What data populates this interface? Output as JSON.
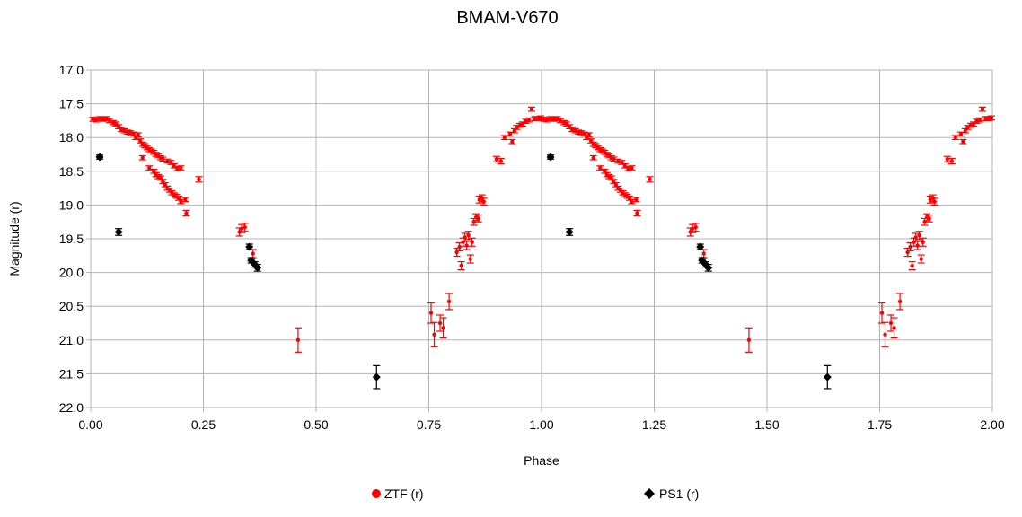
{
  "chart_data": {
    "type": "scatter",
    "title": "BMAM-V670",
    "xlabel": "Phase",
    "ylabel": "Magnitude (r)",
    "xlim": [
      0,
      2
    ],
    "ylim": [
      22.0,
      17.0
    ],
    "y_inverted": true,
    "grid": true,
    "legend_position": "bottom",
    "x_ticks": [
      "0.00",
      "0.25",
      "0.50",
      "0.75",
      "1.00",
      "1.25",
      "1.50",
      "1.75",
      "2.00"
    ],
    "y_ticks": [
      "17.0",
      "17.5",
      "18.0",
      "18.5",
      "19.0",
      "19.5",
      "20.0",
      "20.5",
      "21.0",
      "21.5",
      "22.0"
    ],
    "series": [
      {
        "name": "ZTF (r)",
        "color": "#ff0000",
        "marker": "circle",
        "points": [
          {
            "x": 0.005,
            "y": 17.73,
            "err": 0.03
          },
          {
            "x": 0.012,
            "y": 17.74,
            "err": 0.03
          },
          {
            "x": 0.02,
            "y": 17.72,
            "err": 0.03
          },
          {
            "x": 0.028,
            "y": 17.73,
            "err": 0.03
          },
          {
            "x": 0.035,
            "y": 17.72,
            "err": 0.03
          },
          {
            "x": 0.042,
            "y": 17.75,
            "err": 0.03
          },
          {
            "x": 0.05,
            "y": 17.78,
            "err": 0.03
          },
          {
            "x": 0.056,
            "y": 17.8,
            "err": 0.03
          },
          {
            "x": 0.062,
            "y": 17.84,
            "err": 0.03
          },
          {
            "x": 0.068,
            "y": 17.88,
            "err": 0.03
          },
          {
            "x": 0.075,
            "y": 17.9,
            "err": 0.03
          },
          {
            "x": 0.082,
            "y": 17.92,
            "err": 0.03
          },
          {
            "x": 0.088,
            "y": 17.93,
            "err": 0.03
          },
          {
            "x": 0.095,
            "y": 17.95,
            "err": 0.03
          },
          {
            "x": 0.1,
            "y": 18.0,
            "err": 0.03
          },
          {
            "x": 0.105,
            "y": 17.96,
            "err": 0.03
          },
          {
            "x": 0.11,
            "y": 18.05,
            "err": 0.03
          },
          {
            "x": 0.115,
            "y": 18.1,
            "err": 0.03
          },
          {
            "x": 0.12,
            "y": 18.12,
            "err": 0.03
          },
          {
            "x": 0.125,
            "y": 18.15,
            "err": 0.03
          },
          {
            "x": 0.13,
            "y": 18.18,
            "err": 0.03
          },
          {
            "x": 0.135,
            "y": 18.2,
            "err": 0.03
          },
          {
            "x": 0.14,
            "y": 18.22,
            "err": 0.03
          },
          {
            "x": 0.145,
            "y": 18.25,
            "err": 0.03
          },
          {
            "x": 0.15,
            "y": 18.27,
            "err": 0.03
          },
          {
            "x": 0.155,
            "y": 18.3,
            "err": 0.03
          },
          {
            "x": 0.16,
            "y": 18.32,
            "err": 0.03
          },
          {
            "x": 0.17,
            "y": 18.35,
            "err": 0.03
          },
          {
            "x": 0.178,
            "y": 18.37,
            "err": 0.03
          },
          {
            "x": 0.185,
            "y": 18.42,
            "err": 0.03
          },
          {
            "x": 0.192,
            "y": 18.46,
            "err": 0.03
          },
          {
            "x": 0.2,
            "y": 18.45,
            "err": 0.03
          },
          {
            "x": 0.115,
            "y": 18.3,
            "err": 0.03
          },
          {
            "x": 0.13,
            "y": 18.45,
            "err": 0.03
          },
          {
            "x": 0.14,
            "y": 18.5,
            "err": 0.03
          },
          {
            "x": 0.145,
            "y": 18.55,
            "err": 0.03
          },
          {
            "x": 0.15,
            "y": 18.58,
            "err": 0.03
          },
          {
            "x": 0.155,
            "y": 18.6,
            "err": 0.03
          },
          {
            "x": 0.16,
            "y": 18.65,
            "err": 0.03
          },
          {
            "x": 0.165,
            "y": 18.7,
            "err": 0.03
          },
          {
            "x": 0.17,
            "y": 18.75,
            "err": 0.03
          },
          {
            "x": 0.175,
            "y": 18.78,
            "err": 0.03
          },
          {
            "x": 0.18,
            "y": 18.82,
            "err": 0.03
          },
          {
            "x": 0.185,
            "y": 18.85,
            "err": 0.03
          },
          {
            "x": 0.19,
            "y": 18.87,
            "err": 0.03
          },
          {
            "x": 0.195,
            "y": 18.9,
            "err": 0.03
          },
          {
            "x": 0.2,
            "y": 18.95,
            "err": 0.03
          },
          {
            "x": 0.21,
            "y": 18.92,
            "err": 0.03
          },
          {
            "x": 0.212,
            "y": 19.12,
            "err": 0.04
          },
          {
            "x": 0.24,
            "y": 18.62,
            "err": 0.04
          },
          {
            "x": 0.33,
            "y": 19.4,
            "err": 0.06
          },
          {
            "x": 0.335,
            "y": 19.35,
            "err": 0.06
          },
          {
            "x": 0.342,
            "y": 19.33,
            "err": 0.06
          },
          {
            "x": 0.36,
            "y": 19.72,
            "err": 0.06
          },
          {
            "x": 0.46,
            "y": 21.0,
            "err": 0.18
          },
          {
            "x": 0.755,
            "y": 20.6,
            "err": 0.15
          },
          {
            "x": 0.762,
            "y": 20.92,
            "err": 0.18
          },
          {
            "x": 0.775,
            "y": 20.75,
            "err": 0.12
          },
          {
            "x": 0.782,
            "y": 20.82,
            "err": 0.15
          },
          {
            "x": 0.795,
            "y": 20.43,
            "err": 0.12
          },
          {
            "x": 0.812,
            "y": 19.7,
            "err": 0.06
          },
          {
            "x": 0.818,
            "y": 19.62,
            "err": 0.06
          },
          {
            "x": 0.822,
            "y": 19.9,
            "err": 0.06
          },
          {
            "x": 0.826,
            "y": 19.55,
            "err": 0.06
          },
          {
            "x": 0.83,
            "y": 19.48,
            "err": 0.06
          },
          {
            "x": 0.834,
            "y": 19.6,
            "err": 0.06
          },
          {
            "x": 0.838,
            "y": 19.45,
            "err": 0.06
          },
          {
            "x": 0.842,
            "y": 19.8,
            "err": 0.06
          },
          {
            "x": 0.846,
            "y": 19.55,
            "err": 0.06
          },
          {
            "x": 0.85,
            "y": 19.25,
            "err": 0.05
          },
          {
            "x": 0.855,
            "y": 19.18,
            "err": 0.05
          },
          {
            "x": 0.86,
            "y": 19.2,
            "err": 0.05
          },
          {
            "x": 0.862,
            "y": 18.92,
            "err": 0.05
          },
          {
            "x": 0.868,
            "y": 18.9,
            "err": 0.05
          },
          {
            "x": 0.872,
            "y": 18.95,
            "err": 0.05
          },
          {
            "x": 0.9,
            "y": 18.32,
            "err": 0.04
          },
          {
            "x": 0.91,
            "y": 18.35,
            "err": 0.04
          },
          {
            "x": 0.918,
            "y": 18.0,
            "err": 0.03
          },
          {
            "x": 0.93,
            "y": 17.95,
            "err": 0.03
          },
          {
            "x": 0.935,
            "y": 18.06,
            "err": 0.03
          },
          {
            "x": 0.94,
            "y": 17.9,
            "err": 0.03
          },
          {
            "x": 0.945,
            "y": 17.85,
            "err": 0.03
          },
          {
            "x": 0.952,
            "y": 17.82,
            "err": 0.03
          },
          {
            "x": 0.958,
            "y": 17.8,
            "err": 0.03
          },
          {
            "x": 0.965,
            "y": 17.76,
            "err": 0.03
          },
          {
            "x": 0.972,
            "y": 17.74,
            "err": 0.03
          },
          {
            "x": 0.978,
            "y": 17.58,
            "err": 0.03
          },
          {
            "x": 0.985,
            "y": 17.72,
            "err": 0.03
          },
          {
            "x": 0.992,
            "y": 17.72,
            "err": 0.03
          },
          {
            "x": 0.998,
            "y": 17.71,
            "err": 0.03
          },
          {
            "x": 1.005,
            "y": 17.73,
            "err": 0.03
          },
          {
            "x": 1.012,
            "y": 17.74,
            "err": 0.03
          },
          {
            "x": 1.02,
            "y": 17.72,
            "err": 0.03
          },
          {
            "x": 1.028,
            "y": 17.73,
            "err": 0.03
          },
          {
            "x": 1.035,
            "y": 17.72,
            "err": 0.03
          },
          {
            "x": 1.042,
            "y": 17.75,
            "err": 0.03
          },
          {
            "x": 1.05,
            "y": 17.78,
            "err": 0.03
          },
          {
            "x": 1.056,
            "y": 17.8,
            "err": 0.03
          },
          {
            "x": 1.062,
            "y": 17.84,
            "err": 0.03
          },
          {
            "x": 1.068,
            "y": 17.88,
            "err": 0.03
          },
          {
            "x": 1.075,
            "y": 17.9,
            "err": 0.03
          },
          {
            "x": 1.082,
            "y": 17.92,
            "err": 0.03
          },
          {
            "x": 1.088,
            "y": 17.93,
            "err": 0.03
          },
          {
            "x": 1.095,
            "y": 17.95,
            "err": 0.03
          },
          {
            "x": 1.1,
            "y": 18.0,
            "err": 0.03
          },
          {
            "x": 1.105,
            "y": 17.96,
            "err": 0.03
          },
          {
            "x": 1.11,
            "y": 18.05,
            "err": 0.03
          },
          {
            "x": 1.115,
            "y": 18.1,
            "err": 0.03
          },
          {
            "x": 1.12,
            "y": 18.12,
            "err": 0.03
          },
          {
            "x": 1.125,
            "y": 18.15,
            "err": 0.03
          },
          {
            "x": 1.13,
            "y": 18.18,
            "err": 0.03
          },
          {
            "x": 1.135,
            "y": 18.2,
            "err": 0.03
          },
          {
            "x": 1.14,
            "y": 18.22,
            "err": 0.03
          },
          {
            "x": 1.145,
            "y": 18.25,
            "err": 0.03
          },
          {
            "x": 1.15,
            "y": 18.27,
            "err": 0.03
          },
          {
            "x": 1.155,
            "y": 18.3,
            "err": 0.03
          },
          {
            "x": 1.16,
            "y": 18.32,
            "err": 0.03
          },
          {
            "x": 1.17,
            "y": 18.35,
            "err": 0.03
          },
          {
            "x": 1.178,
            "y": 18.37,
            "err": 0.03
          },
          {
            "x": 1.185,
            "y": 18.42,
            "err": 0.03
          },
          {
            "x": 1.192,
            "y": 18.46,
            "err": 0.03
          },
          {
            "x": 1.2,
            "y": 18.45,
            "err": 0.03
          },
          {
            "x": 1.115,
            "y": 18.3,
            "err": 0.03
          },
          {
            "x": 1.13,
            "y": 18.45,
            "err": 0.03
          },
          {
            "x": 1.14,
            "y": 18.5,
            "err": 0.03
          },
          {
            "x": 1.145,
            "y": 18.55,
            "err": 0.03
          },
          {
            "x": 1.15,
            "y": 18.58,
            "err": 0.03
          },
          {
            "x": 1.155,
            "y": 18.6,
            "err": 0.03
          },
          {
            "x": 1.16,
            "y": 18.65,
            "err": 0.03
          },
          {
            "x": 1.165,
            "y": 18.7,
            "err": 0.03
          },
          {
            "x": 1.17,
            "y": 18.75,
            "err": 0.03
          },
          {
            "x": 1.175,
            "y": 18.78,
            "err": 0.03
          },
          {
            "x": 1.18,
            "y": 18.82,
            "err": 0.03
          },
          {
            "x": 1.185,
            "y": 18.85,
            "err": 0.03
          },
          {
            "x": 1.19,
            "y": 18.87,
            "err": 0.03
          },
          {
            "x": 1.195,
            "y": 18.9,
            "err": 0.03
          },
          {
            "x": 1.2,
            "y": 18.95,
            "err": 0.03
          },
          {
            "x": 1.21,
            "y": 18.92,
            "err": 0.03
          },
          {
            "x": 1.212,
            "y": 19.12,
            "err": 0.04
          },
          {
            "x": 1.24,
            "y": 18.62,
            "err": 0.04
          },
          {
            "x": 1.33,
            "y": 19.4,
            "err": 0.06
          },
          {
            "x": 1.335,
            "y": 19.35,
            "err": 0.06
          },
          {
            "x": 1.342,
            "y": 19.33,
            "err": 0.06
          },
          {
            "x": 1.36,
            "y": 19.72,
            "err": 0.06
          },
          {
            "x": 1.46,
            "y": 21.0,
            "err": 0.18
          },
          {
            "x": 1.755,
            "y": 20.6,
            "err": 0.15
          },
          {
            "x": 1.762,
            "y": 20.92,
            "err": 0.18
          },
          {
            "x": 1.775,
            "y": 20.75,
            "err": 0.12
          },
          {
            "x": 1.782,
            "y": 20.82,
            "err": 0.15
          },
          {
            "x": 1.795,
            "y": 20.43,
            "err": 0.12
          },
          {
            "x": 1.812,
            "y": 19.7,
            "err": 0.06
          },
          {
            "x": 1.818,
            "y": 19.62,
            "err": 0.06
          },
          {
            "x": 1.822,
            "y": 19.9,
            "err": 0.06
          },
          {
            "x": 1.826,
            "y": 19.55,
            "err": 0.06
          },
          {
            "x": 1.83,
            "y": 19.48,
            "err": 0.06
          },
          {
            "x": 1.834,
            "y": 19.6,
            "err": 0.06
          },
          {
            "x": 1.838,
            "y": 19.45,
            "err": 0.06
          },
          {
            "x": 1.842,
            "y": 19.8,
            "err": 0.06
          },
          {
            "x": 1.846,
            "y": 19.55,
            "err": 0.06
          },
          {
            "x": 1.85,
            "y": 19.25,
            "err": 0.05
          },
          {
            "x": 1.855,
            "y": 19.18,
            "err": 0.05
          },
          {
            "x": 1.86,
            "y": 19.2,
            "err": 0.05
          },
          {
            "x": 1.862,
            "y": 18.92,
            "err": 0.05
          },
          {
            "x": 1.868,
            "y": 18.9,
            "err": 0.05
          },
          {
            "x": 1.872,
            "y": 18.95,
            "err": 0.05
          },
          {
            "x": 1.9,
            "y": 18.32,
            "err": 0.04
          },
          {
            "x": 1.91,
            "y": 18.35,
            "err": 0.04
          },
          {
            "x": 1.918,
            "y": 18.0,
            "err": 0.03
          },
          {
            "x": 1.93,
            "y": 17.95,
            "err": 0.03
          },
          {
            "x": 1.935,
            "y": 18.06,
            "err": 0.03
          },
          {
            "x": 1.94,
            "y": 17.9,
            "err": 0.03
          },
          {
            "x": 1.945,
            "y": 17.85,
            "err": 0.03
          },
          {
            "x": 1.952,
            "y": 17.82,
            "err": 0.03
          },
          {
            "x": 1.958,
            "y": 17.8,
            "err": 0.03
          },
          {
            "x": 1.965,
            "y": 17.76,
            "err": 0.03
          },
          {
            "x": 1.972,
            "y": 17.74,
            "err": 0.03
          },
          {
            "x": 1.978,
            "y": 17.58,
            "err": 0.03
          },
          {
            "x": 1.985,
            "y": 17.72,
            "err": 0.03
          },
          {
            "x": 1.992,
            "y": 17.72,
            "err": 0.03
          },
          {
            "x": 1.998,
            "y": 17.71,
            "err": 0.03
          }
        ]
      },
      {
        "name": "PS1 (r)",
        "color": "#000000",
        "marker": "diamond",
        "points": [
          {
            "x": 0.02,
            "y": 18.29,
            "err": 0.03
          },
          {
            "x": 0.062,
            "y": 19.4,
            "err": 0.05
          },
          {
            "x": 0.352,
            "y": 19.62,
            "err": 0.04
          },
          {
            "x": 0.356,
            "y": 19.82,
            "err": 0.04
          },
          {
            "x": 0.364,
            "y": 19.88,
            "err": 0.04
          },
          {
            "x": 0.37,
            "y": 19.93,
            "err": 0.05
          },
          {
            "x": 0.634,
            "y": 21.55,
            "err": 0.17
          },
          {
            "x": 1.02,
            "y": 18.29,
            "err": 0.03
          },
          {
            "x": 1.062,
            "y": 19.4,
            "err": 0.05
          },
          {
            "x": 1.352,
            "y": 19.62,
            "err": 0.04
          },
          {
            "x": 1.356,
            "y": 19.82,
            "err": 0.04
          },
          {
            "x": 1.364,
            "y": 19.88,
            "err": 0.04
          },
          {
            "x": 1.37,
            "y": 19.93,
            "err": 0.05
          },
          {
            "x": 1.634,
            "y": 21.55,
            "err": 0.17
          }
        ]
      }
    ]
  }
}
